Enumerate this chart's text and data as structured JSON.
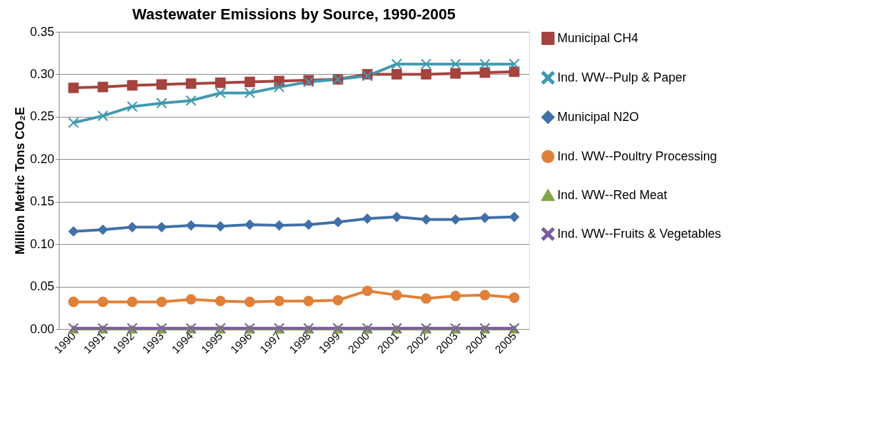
{
  "chart_data": {
    "type": "line",
    "title": "Wastewater Emissions by Source, 1990-2005",
    "ylabel": "Million Metric Tons CO₂E",
    "categories": [
      "1990",
      "1991",
      "1992",
      "1993",
      "1994",
      "1995",
      "1996",
      "1997",
      "1998",
      "1999",
      "2000",
      "2001",
      "2002",
      "2003",
      "2004",
      "2005"
    ],
    "ylim": [
      0,
      0.35
    ],
    "yticks": [
      {
        "value": 0,
        "label": "0.00"
      },
      {
        "value": 0.05,
        "label": "0.05"
      },
      {
        "value": 0.1,
        "label": "0.10"
      },
      {
        "value": 0.15,
        "label": "0.15"
      },
      {
        "value": 0.2,
        "label": "0.20"
      },
      {
        "value": 0.25,
        "label": "0.25"
      },
      {
        "value": 0.3,
        "label": "0.30"
      },
      {
        "value": 0.35,
        "label": "0.35"
      }
    ],
    "grid": "y",
    "legend": "right",
    "line_style": "solid",
    "series": [
      {
        "name": "Municipal CH4",
        "color": "#a5433f",
        "marker": "square",
        "values": [
          0.284,
          0.285,
          0.287,
          0.288,
          0.289,
          0.29,
          0.291,
          0.292,
          0.293,
          0.294,
          0.3,
          0.3,
          0.3,
          0.301,
          0.302,
          0.303
        ]
      },
      {
        "name": "Ind. WW--Pulp & Paper",
        "color": "#4199b0",
        "marker": "cross",
        "values": [
          0.243,
          0.251,
          0.262,
          0.266,
          0.269,
          0.278,
          0.278,
          0.285,
          0.291,
          0.294,
          0.298,
          0.312,
          0.312,
          0.312,
          0.312,
          0.312
        ]
      },
      {
        "name": "Municipal N2O",
        "color": "#416fa8",
        "marker": "diamond",
        "values": [
          0.115,
          0.117,
          0.12,
          0.12,
          0.122,
          0.121,
          0.123,
          0.122,
          0.123,
          0.126,
          0.13,
          0.132,
          0.129,
          0.129,
          0.131,
          0.132
        ]
      },
      {
        "name": "Ind. WW--Poultry Processing",
        "color": "#df813a",
        "marker": "circle",
        "values": [
          0.032,
          0.032,
          0.032,
          0.032,
          0.035,
          0.033,
          0.032,
          0.033,
          0.033,
          0.034,
          0.045,
          0.04,
          0.036,
          0.039,
          0.04,
          0.037
        ]
      },
      {
        "name": "Ind. WW--Red Meat",
        "color": "#83a44a",
        "marker": "triangle",
        "values": [
          0,
          0,
          0,
          0,
          0,
          0,
          0,
          0,
          0,
          0,
          0,
          0,
          0,
          0,
          0,
          0
        ]
      },
      {
        "name": "Ind. WW--Fruits & Vegetables",
        "color": "#7c5c9e",
        "marker": "cross",
        "values": [
          0.001,
          0.001,
          0.001,
          0.001,
          0.001,
          0.001,
          0.001,
          0.001,
          0.001,
          0.001,
          0.001,
          0.001,
          0.001,
          0.001,
          0.001,
          0.001
        ]
      }
    ]
  }
}
